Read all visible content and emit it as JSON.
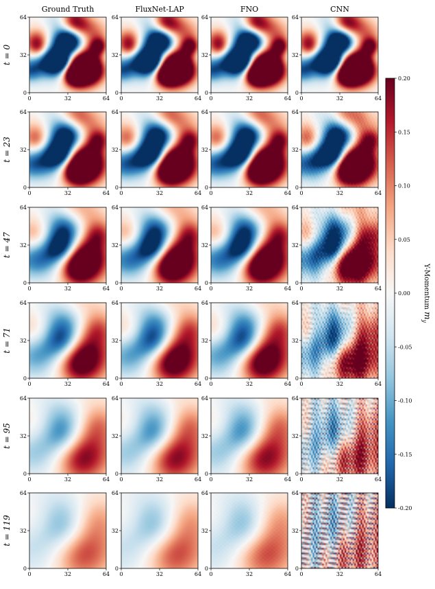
{
  "chart_data": {
    "type": "heatmap",
    "title": "",
    "columns": [
      "Ground Truth",
      "FluxNet-LAP",
      "FNO",
      "CNN"
    ],
    "rows": [
      {
        "label": "t = 0",
        "t": 0
      },
      {
        "label": "t = 23",
        "t": 23
      },
      {
        "label": "t = 47",
        "t": 47
      },
      {
        "label": "t = 71",
        "t": 71
      },
      {
        "label": "t = 95",
        "t": 95
      },
      {
        "label": "t = 119",
        "t": 119
      }
    ],
    "x_ticks": [
      0,
      32,
      64
    ],
    "y_ticks": [
      0,
      32,
      64
    ],
    "x_range": [
      0,
      64
    ],
    "y_range": [
      0,
      64
    ],
    "colorbar": {
      "label": "Y-Momentum m_y",
      "label_text": "Y-Momentum ",
      "label_symbol": "m",
      "label_subscript": "y",
      "range": [
        -0.2,
        0.2
      ],
      "ticks": [
        "0.20",
        "0.15",
        "0.10",
        "0.05",
        "0.00",
        "-0.05",
        "-0.10",
        "-0.15",
        "-0.20"
      ],
      "colormap": "RdBu_r",
      "colors": [
        "#053061",
        "#2166ac",
        "#4393c3",
        "#92c5de",
        "#d1e5f0",
        "#f7f7f7",
        "#fddbc7",
        "#f4a582",
        "#d6604d",
        "#b2182b",
        "#67001f"
      ]
    },
    "notes": "Field snapshots of y-momentum on a 64x64 grid; amplitude decays with time; CNN develops high-frequency artifacts at later times."
  }
}
